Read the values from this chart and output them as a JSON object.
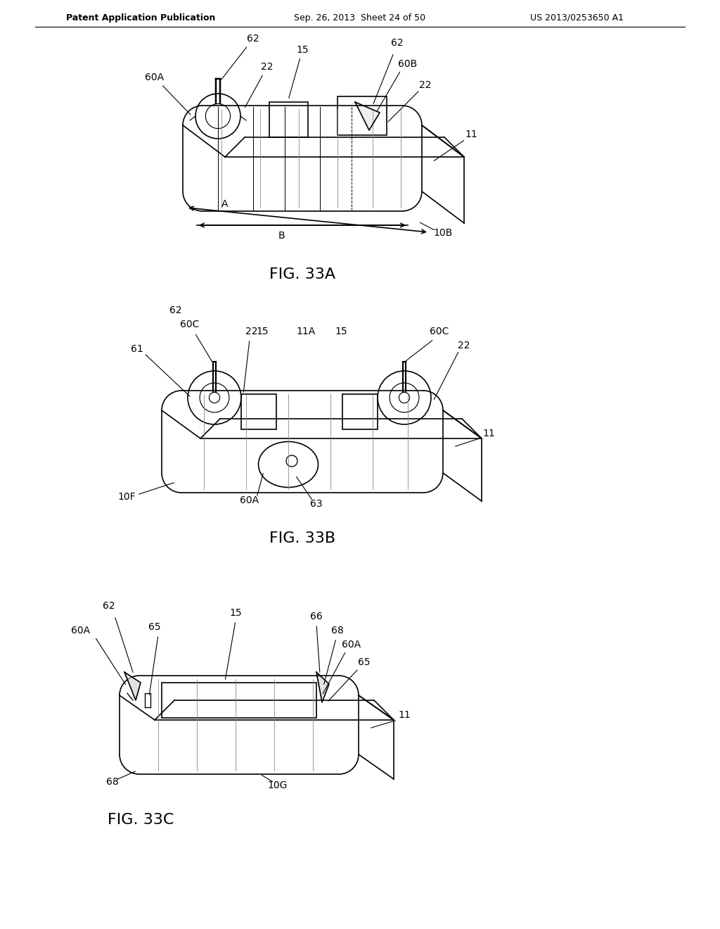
{
  "background_color": "#ffffff",
  "header_left": "Patent Application Publication",
  "header_center": "Sep. 26, 2013  Sheet 24 of 50",
  "header_right": "US 2013/0253650 A1",
  "fig33a_caption": "FIG. 33A",
  "fig33b_caption": "FIG. 33B",
  "fig33c_caption": "FIG. 33C",
  "line_color": "#000000",
  "line_width": 1.2,
  "label_fontsize": 10,
  "caption_fontsize": 16
}
